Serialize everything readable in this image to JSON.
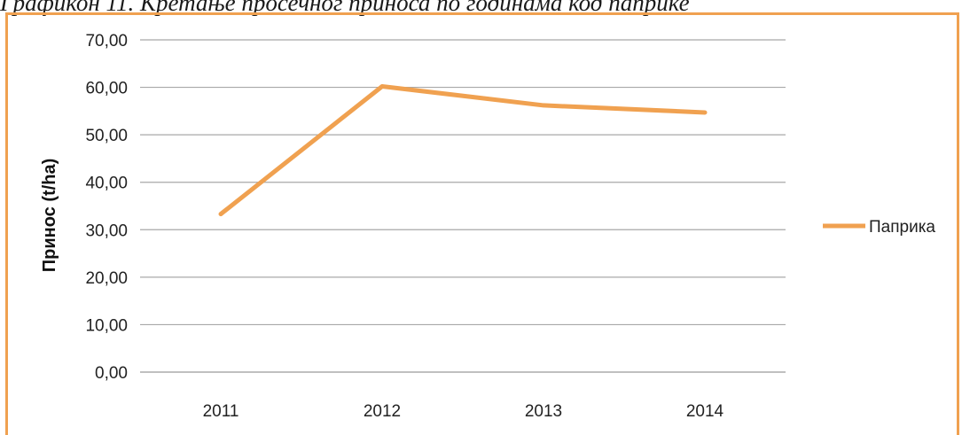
{
  "caption": "Графикон 11. Кретање просечног приноса по годинама код паприке",
  "chart_data": {
    "type": "line",
    "categories": [
      "2011",
      "2012",
      "2013",
      "2014"
    ],
    "series": [
      {
        "name": "Паприка",
        "values": [
          33.3,
          60.2,
          56.2,
          54.7
        ],
        "color": "#f0a150"
      }
    ],
    "ylabel": "Принос (t/ha)",
    "xlabel": "",
    "ylim": [
      0,
      70
    ],
    "yticks": [
      "0,00",
      "10,00",
      "20,00",
      "30,00",
      "40,00",
      "50,00",
      "60,00",
      "70,00"
    ],
    "grid": true,
    "legend": "right"
  }
}
